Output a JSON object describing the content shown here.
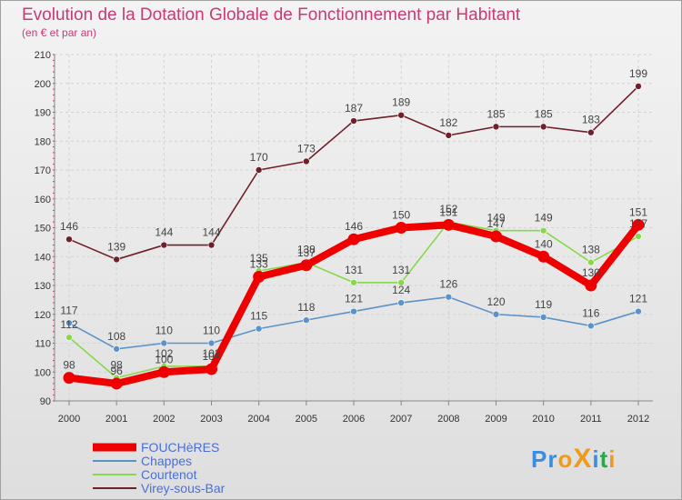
{
  "chart_data": {
    "type": "line",
    "title": "Evolution de la Dotation Globale de Fonctionnement par Habitant",
    "subtitle": "(en € et par an)",
    "categories": [
      "2000",
      "2001",
      "2002",
      "2003",
      "2004",
      "2005",
      "2006",
      "2007",
      "2008",
      "2009",
      "2010",
      "2011",
      "2012"
    ],
    "y_ticks": [
      90,
      100,
      110,
      120,
      130,
      140,
      150,
      160,
      170,
      180,
      190,
      200,
      210
    ],
    "ylim": [
      90,
      210
    ],
    "series": [
      {
        "name": "Virey-sous-Bar",
        "color": "#6e1f2a",
        "values": [
          146,
          139,
          144,
          144,
          170,
          173,
          187,
          189,
          182,
          185,
          185,
          183,
          199
        ]
      },
      {
        "name": "Courtenot",
        "color": "#86d94a",
        "values": [
          112,
          98,
          102,
          102,
          135,
          138,
          131,
          131,
          152,
          149,
          149,
          138,
          147
        ]
      },
      {
        "name": "Chappes",
        "color": "#5b93c9",
        "values": [
          117,
          108,
          110,
          110,
          115,
          118,
          121,
          124,
          126,
          120,
          119,
          116,
          121
        ]
      },
      {
        "name": "FOUCHèRES",
        "color": "#ee0000",
        "values": [
          98,
          96,
          100,
          101,
          133,
          137,
          146,
          150,
          151,
          147,
          140,
          130,
          151
        ]
      }
    ],
    "legend": [
      "FOUCHèRES",
      "Chappes",
      "Courtenot",
      "Virey-sous-Bar"
    ],
    "legend_position": "bottom-left"
  },
  "logo": {
    "text": "ProXiti",
    "letters": [
      "P",
      "r",
      "o",
      "X",
      "i",
      "t",
      "i"
    ],
    "colors": [
      "#3a8de0",
      "#3a8de0",
      "#f09a1a",
      "#f09a1a",
      "#3a8de0",
      "#2aa84a",
      "#f09a1a"
    ]
  }
}
